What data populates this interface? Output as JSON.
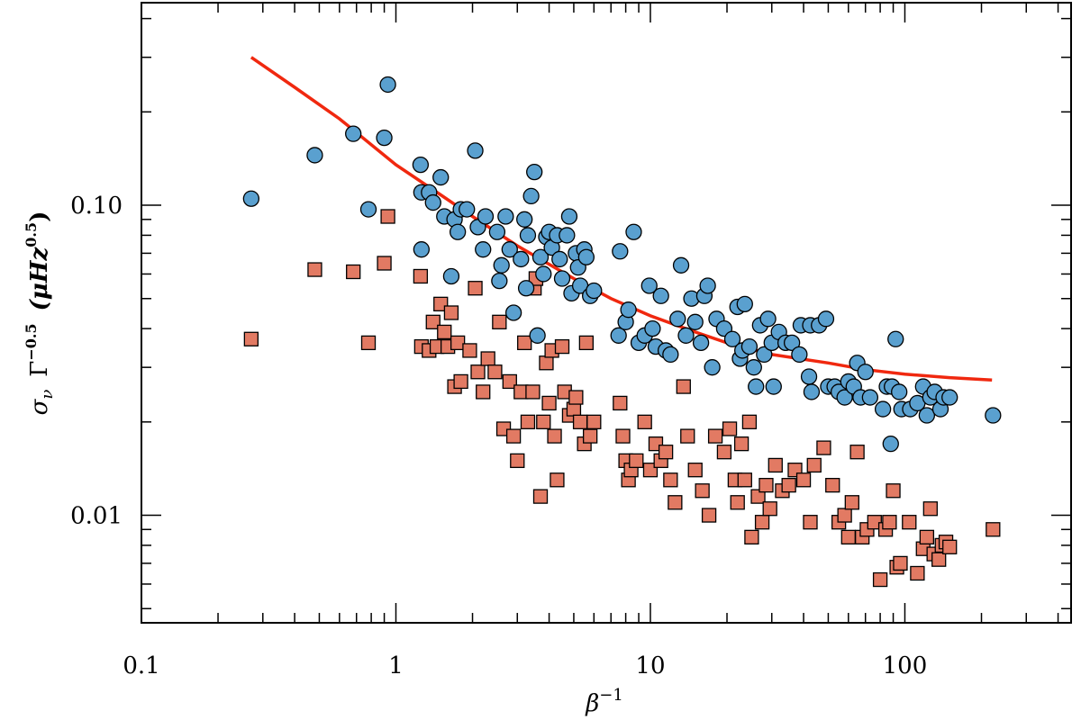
{
  "chart_data": {
    "type": "scatter",
    "xlabel": "β⁻¹",
    "ylabel": "σν Γ^-0.5 (μHz^0.5)",
    "xlabel_parts": {
      "base": "β",
      "sup": "−1"
    },
    "ylabel_parts": {
      "sigma": "σ",
      "nu": "ν",
      "gamma": "Γ",
      "gamma_sup": "−0.5",
      "unit_open": "(μHz",
      "unit_sup": "0.5",
      "unit_close": ")"
    },
    "x_scale": "log",
    "y_scale": "log",
    "xlim": [
      0.1,
      450
    ],
    "ylim": [
      0.0045,
      0.45
    ],
    "xticks": [
      0.1,
      1,
      10,
      100
    ],
    "xtick_labels": [
      "0.1",
      "1",
      "10",
      "100"
    ],
    "yticks": [
      0.01,
      0.1
    ],
    "ytick_labels": [
      "0.01",
      "0.10"
    ],
    "grid": false,
    "colors": {
      "circles": "#5aa0cf",
      "squares": "#e27a63",
      "fit": "#f0280f"
    },
    "series": [
      {
        "marker": "circle",
        "color": "#5aa0cf",
        "points": [
          [
            0.27,
            0.105
          ],
          [
            0.48,
            0.145
          ],
          [
            0.68,
            0.17
          ],
          [
            0.78,
            0.097
          ],
          [
            0.9,
            0.165
          ],
          [
            0.93,
            0.245
          ],
          [
            1.25,
            0.135
          ],
          [
            1.26,
            0.11
          ],
          [
            1.26,
            0.072
          ],
          [
            1.35,
            0.11
          ],
          [
            1.4,
            0.102
          ],
          [
            1.5,
            0.123
          ],
          [
            1.55,
            0.092
          ],
          [
            1.65,
            0.059
          ],
          [
            1.7,
            0.09
          ],
          [
            1.75,
            0.082
          ],
          [
            1.8,
            0.097
          ],
          [
            1.9,
            0.097
          ],
          [
            2.05,
            0.15
          ],
          [
            2.1,
            0.085
          ],
          [
            2.2,
            0.072
          ],
          [
            2.25,
            0.092
          ],
          [
            2.5,
            0.082
          ],
          [
            2.55,
            0.057
          ],
          [
            2.6,
            0.064
          ],
          [
            2.7,
            0.092
          ],
          [
            2.8,
            0.072
          ],
          [
            2.9,
            0.045
          ],
          [
            3.1,
            0.067
          ],
          [
            3.2,
            0.09
          ],
          [
            3.25,
            0.054
          ],
          [
            3.3,
            0.08
          ],
          [
            3.4,
            0.107
          ],
          [
            3.5,
            0.128
          ],
          [
            3.6,
            0.038
          ],
          [
            3.7,
            0.068
          ],
          [
            3.8,
            0.06
          ],
          [
            3.9,
            0.079
          ],
          [
            4.0,
            0.082
          ],
          [
            4.1,
            0.073
          ],
          [
            4.3,
            0.08
          ],
          [
            4.4,
            0.067
          ],
          [
            4.5,
            0.058
          ],
          [
            4.7,
            0.08
          ],
          [
            4.8,
            0.092
          ],
          [
            4.9,
            0.052
          ],
          [
            5.1,
            0.07
          ],
          [
            5.2,
            0.063
          ],
          [
            5.3,
            0.055
          ],
          [
            5.5,
            0.072
          ],
          [
            5.6,
            0.068
          ],
          [
            5.8,
            0.051
          ],
          [
            6.0,
            0.053
          ],
          [
            7.5,
            0.038
          ],
          [
            7.6,
            0.071
          ],
          [
            8.0,
            0.042
          ],
          [
            8.2,
            0.046
          ],
          [
            8.6,
            0.082
          ],
          [
            9.0,
            0.036
          ],
          [
            9.5,
            0.038
          ],
          [
            9.9,
            0.055
          ],
          [
            10.2,
            0.04
          ],
          [
            10.5,
            0.035
          ],
          [
            11.0,
            0.051
          ],
          [
            11.5,
            0.034
          ],
          [
            12.0,
            0.033
          ],
          [
            12.8,
            0.043
          ],
          [
            13.2,
            0.064
          ],
          [
            13.8,
            0.038
          ],
          [
            14.5,
            0.05
          ],
          [
            15.0,
            0.042
          ],
          [
            15.8,
            0.036
          ],
          [
            16.3,
            0.051
          ],
          [
            16.8,
            0.055
          ],
          [
            17.5,
            0.03
          ],
          [
            18.2,
            0.043
          ],
          [
            19.5,
            0.04
          ],
          [
            21.0,
            0.037
          ],
          [
            22.0,
            0.047
          ],
          [
            22.5,
            0.032
          ],
          [
            23.0,
            0.034
          ],
          [
            23.5,
            0.048
          ],
          [
            24.5,
            0.035
          ],
          [
            25.5,
            0.03
          ],
          [
            26.0,
            0.026
          ],
          [
            27.0,
            0.041
          ],
          [
            28.0,
            0.033
          ],
          [
            29.0,
            0.043
          ],
          [
            30.0,
            0.036
          ],
          [
            30.5,
            0.026
          ],
          [
            32.0,
            0.039
          ],
          [
            34.0,
            0.036
          ],
          [
            36.0,
            0.036
          ],
          [
            38.5,
            0.033
          ],
          [
            39.0,
            0.041
          ],
          [
            42.0,
            0.028
          ],
          [
            42.5,
            0.041
          ],
          [
            43.0,
            0.025
          ],
          [
            46.0,
            0.041
          ],
          [
            49.0,
            0.043
          ],
          [
            50.0,
            0.026
          ],
          [
            53.0,
            0.026
          ],
          [
            55.0,
            0.025
          ],
          [
            58.0,
            0.024
          ],
          [
            60.0,
            0.027
          ],
          [
            63.0,
            0.026
          ],
          [
            65.0,
            0.031
          ],
          [
            67.0,
            0.024
          ],
          [
            70.0,
            0.029
          ],
          [
            73.0,
            0.024
          ],
          [
            82.0,
            0.022
          ],
          [
            85.0,
            0.026
          ],
          [
            88.0,
            0.017
          ],
          [
            89.0,
            0.026
          ],
          [
            92.0,
            0.037
          ],
          [
            95.0,
            0.025
          ],
          [
            97.0,
            0.022
          ],
          [
            105.0,
            0.022
          ],
          [
            112.0,
            0.023
          ],
          [
            118.0,
            0.026
          ],
          [
            122.0,
            0.021
          ],
          [
            126.0,
            0.024
          ],
          [
            131.0,
            0.025
          ],
          [
            138.0,
            0.022
          ],
          [
            142.0,
            0.024
          ],
          [
            150.0,
            0.024
          ],
          [
            222.0,
            0.021
          ]
        ]
      },
      {
        "marker": "square",
        "color": "#e27a63",
        "points": [
          [
            0.27,
            0.037
          ],
          [
            0.48,
            0.062
          ],
          [
            0.68,
            0.061
          ],
          [
            0.78,
            0.036
          ],
          [
            0.9,
            0.065
          ],
          [
            0.93,
            0.092
          ],
          [
            1.25,
            0.059
          ],
          [
            1.26,
            0.035
          ],
          [
            1.35,
            0.034
          ],
          [
            1.4,
            0.042
          ],
          [
            1.45,
            0.035
          ],
          [
            1.5,
            0.048
          ],
          [
            1.55,
            0.039
          ],
          [
            1.6,
            0.035
          ],
          [
            1.65,
            0.045
          ],
          [
            1.7,
            0.026
          ],
          [
            1.75,
            0.036
          ],
          [
            1.8,
            0.027
          ],
          [
            1.95,
            0.034
          ],
          [
            2.05,
            0.054
          ],
          [
            2.1,
            0.029
          ],
          [
            2.2,
            0.025
          ],
          [
            2.3,
            0.032
          ],
          [
            2.45,
            0.029
          ],
          [
            2.55,
            0.042
          ],
          [
            2.65,
            0.019
          ],
          [
            2.8,
            0.027
          ],
          [
            2.9,
            0.018
          ],
          [
            3.0,
            0.015
          ],
          [
            3.1,
            0.025
          ],
          [
            3.2,
            0.036
          ],
          [
            3.3,
            0.02
          ],
          [
            3.45,
            0.025
          ],
          [
            3.5,
            0.054
          ],
          [
            3.55,
            0.058
          ],
          [
            3.7,
            0.0115
          ],
          [
            3.8,
            0.02
          ],
          [
            3.9,
            0.031
          ],
          [
            4.0,
            0.023
          ],
          [
            4.1,
            0.034
          ],
          [
            4.2,
            0.018
          ],
          [
            4.3,
            0.013
          ],
          [
            4.5,
            0.035
          ],
          [
            4.6,
            0.025
          ],
          [
            4.8,
            0.021
          ],
          [
            5.0,
            0.022
          ],
          [
            5.1,
            0.024
          ],
          [
            5.3,
            0.02
          ],
          [
            5.5,
            0.017
          ],
          [
            5.6,
            0.036
          ],
          [
            5.8,
            0.018
          ],
          [
            6.0,
            0.02
          ],
          [
            7.6,
            0.023
          ],
          [
            7.8,
            0.018
          ],
          [
            8.0,
            0.015
          ],
          [
            8.2,
            0.013
          ],
          [
            8.4,
            0.014
          ],
          [
            8.8,
            0.015
          ],
          [
            9.5,
            0.02
          ],
          [
            10.0,
            0.014
          ],
          [
            10.5,
            0.017
          ],
          [
            11.0,
            0.015
          ],
          [
            11.5,
            0.016
          ],
          [
            12.0,
            0.013
          ],
          [
            12.5,
            0.011
          ],
          [
            13.5,
            0.026
          ],
          [
            14.0,
            0.018
          ],
          [
            15.0,
            0.014
          ],
          [
            16.0,
            0.012
          ],
          [
            17.0,
            0.01
          ],
          [
            18.0,
            0.018
          ],
          [
            19.5,
            0.016
          ],
          [
            20.5,
            0.019
          ],
          [
            21.5,
            0.013
          ],
          [
            22.0,
            0.011
          ],
          [
            22.8,
            0.017
          ],
          [
            23.5,
            0.013
          ],
          [
            24.5,
            0.02
          ],
          [
            25.0,
            0.0085
          ],
          [
            26.5,
            0.0115
          ],
          [
            27.5,
            0.0095
          ],
          [
            28.5,
            0.0125
          ],
          [
            29.5,
            0.0105
          ],
          [
            31.0,
            0.0145
          ],
          [
            33.0,
            0.012
          ],
          [
            35.0,
            0.0125
          ],
          [
            37.0,
            0.014
          ],
          [
            40.0,
            0.013
          ],
          [
            42.5,
            0.0095
          ],
          [
            44.0,
            0.0145
          ],
          [
            48.0,
            0.0165
          ],
          [
            52.0,
            0.0125
          ],
          [
            55.0,
            0.0095
          ],
          [
            58.0,
            0.01
          ],
          [
            60.0,
            0.0085
          ],
          [
            62.0,
            0.011
          ],
          [
            65.0,
            0.016
          ],
          [
            68.0,
            0.0085
          ],
          [
            71.0,
            0.009
          ],
          [
            76.0,
            0.0095
          ],
          [
            80.0,
            0.0062
          ],
          [
            84.0,
            0.009
          ],
          [
            87.0,
            0.0095
          ],
          [
            90.0,
            0.012
          ],
          [
            93.0,
            0.0068
          ],
          [
            96.0,
            0.007
          ],
          [
            104.0,
            0.0095
          ],
          [
            112.0,
            0.0065
          ],
          [
            118.0,
            0.0078
          ],
          [
            122.0,
            0.0085
          ],
          [
            126.0,
            0.0105
          ],
          [
            130.0,
            0.0075
          ],
          [
            136.0,
            0.0072
          ],
          [
            140.0,
            0.008
          ],
          [
            145.0,
            0.0082
          ],
          [
            150.0,
            0.0079
          ],
          [
            222.0,
            0.009
          ]
        ]
      },
      {
        "type": "line",
        "color": "#f0280f",
        "points": [
          [
            0.27,
            0.3
          ],
          [
            0.4,
            0.24
          ],
          [
            0.6,
            0.19
          ],
          [
            1.0,
            0.135
          ],
          [
            1.5,
            0.108
          ],
          [
            2.0,
            0.092
          ],
          [
            3.0,
            0.074
          ],
          [
            5.0,
            0.058
          ],
          [
            7.0,
            0.05
          ],
          [
            10.0,
            0.044
          ],
          [
            15.0,
            0.039
          ],
          [
            20.0,
            0.036
          ],
          [
            30.0,
            0.033
          ],
          [
            50.0,
            0.031
          ],
          [
            70.0,
            0.0295
          ],
          [
            100.0,
            0.0285
          ],
          [
            150.0,
            0.0278
          ],
          [
            220.0,
            0.0273
          ]
        ]
      }
    ]
  }
}
